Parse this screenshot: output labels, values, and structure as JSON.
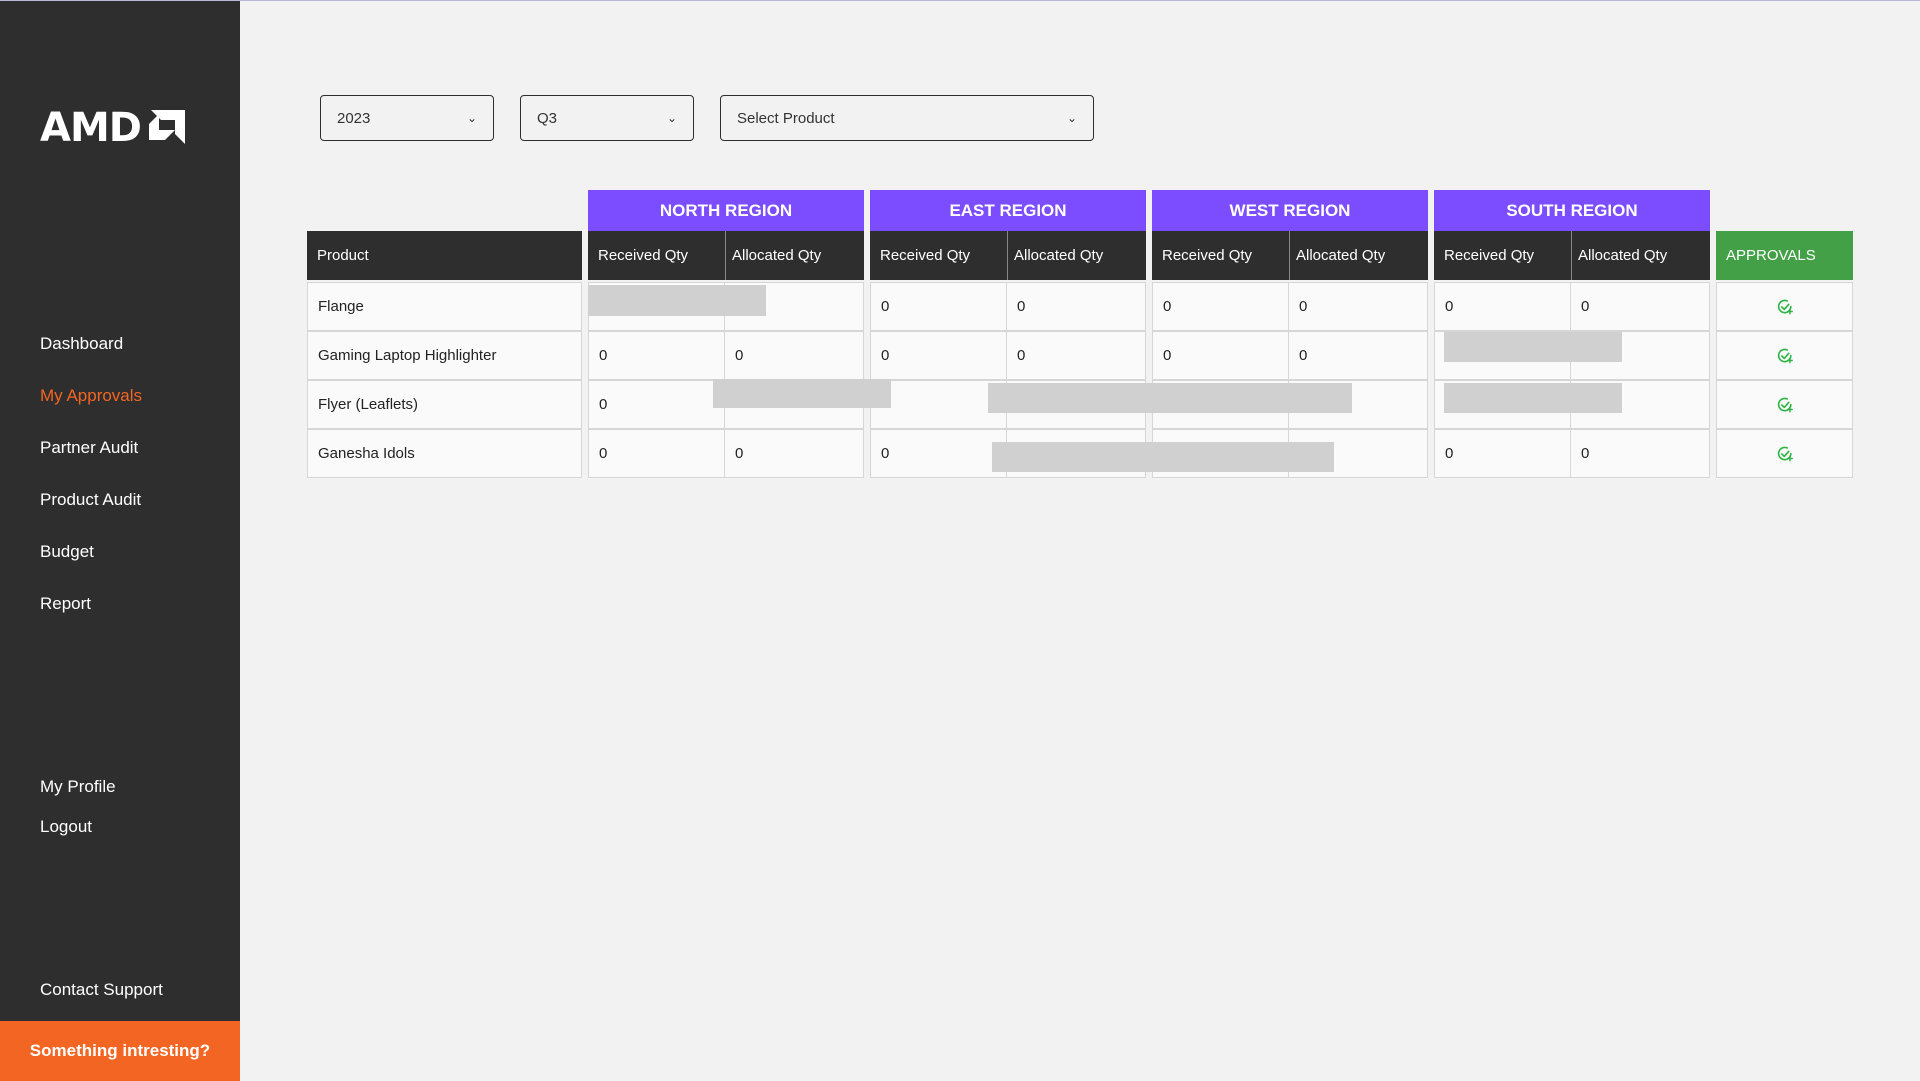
{
  "brand": {
    "logo_text": "AMD"
  },
  "sidebar": {
    "items": [
      {
        "label": "Dashboard"
      },
      {
        "label": "My Approvals"
      },
      {
        "label": "Partner Audit"
      },
      {
        "label": "Product Audit"
      },
      {
        "label": "Budget"
      },
      {
        "label": "Report"
      }
    ],
    "active": "My Approvals",
    "bottom_items": [
      {
        "label": "My Profile"
      },
      {
        "label": "Logout"
      },
      {
        "label": "Contact Support"
      }
    ],
    "cta_label": "Something intresting?"
  },
  "filters": {
    "year": "2023",
    "quarter": "Q3",
    "product_placeholder": "Select Product"
  },
  "table": {
    "product_header": "Product",
    "approvals_header": "APPROVALS",
    "regions": [
      {
        "name": "NORTH REGION",
        "cols": [
          "Received Qty",
          "Allocated Qty"
        ]
      },
      {
        "name": "EAST REGION",
        "cols": [
          "Received Qty",
          "Allocated Qty"
        ]
      },
      {
        "name": "WEST REGION",
        "cols": [
          "Received Qty",
          "Allocated Qty"
        ]
      },
      {
        "name": "SOUTH REGION",
        "cols": [
          "Received Qty",
          "Allocated Qty"
        ]
      }
    ],
    "rows": [
      {
        "product": "Flange",
        "values": [
          "",
          "",
          "0",
          "0",
          "0",
          "0",
          "0",
          "0"
        ]
      },
      {
        "product": "Gaming Laptop Highlighter",
        "values": [
          "0",
          "0",
          "0",
          "0",
          "0",
          "0",
          "",
          ""
        ]
      },
      {
        "product": "Flyer (Leaflets)",
        "values": [
          "0",
          "",
          "",
          "",
          "",
          "",
          "",
          ""
        ]
      },
      {
        "product": "Ganesha Idols",
        "values": [
          "0",
          "0",
          "0",
          "",
          "",
          "",
          "0",
          "0"
        ]
      }
    ]
  },
  "colors": {
    "sidebar_bg": "#2e2e2e",
    "accent_orange": "#f26522",
    "region_purple": "#7c4dff",
    "approvals_green": "#43a047"
  }
}
